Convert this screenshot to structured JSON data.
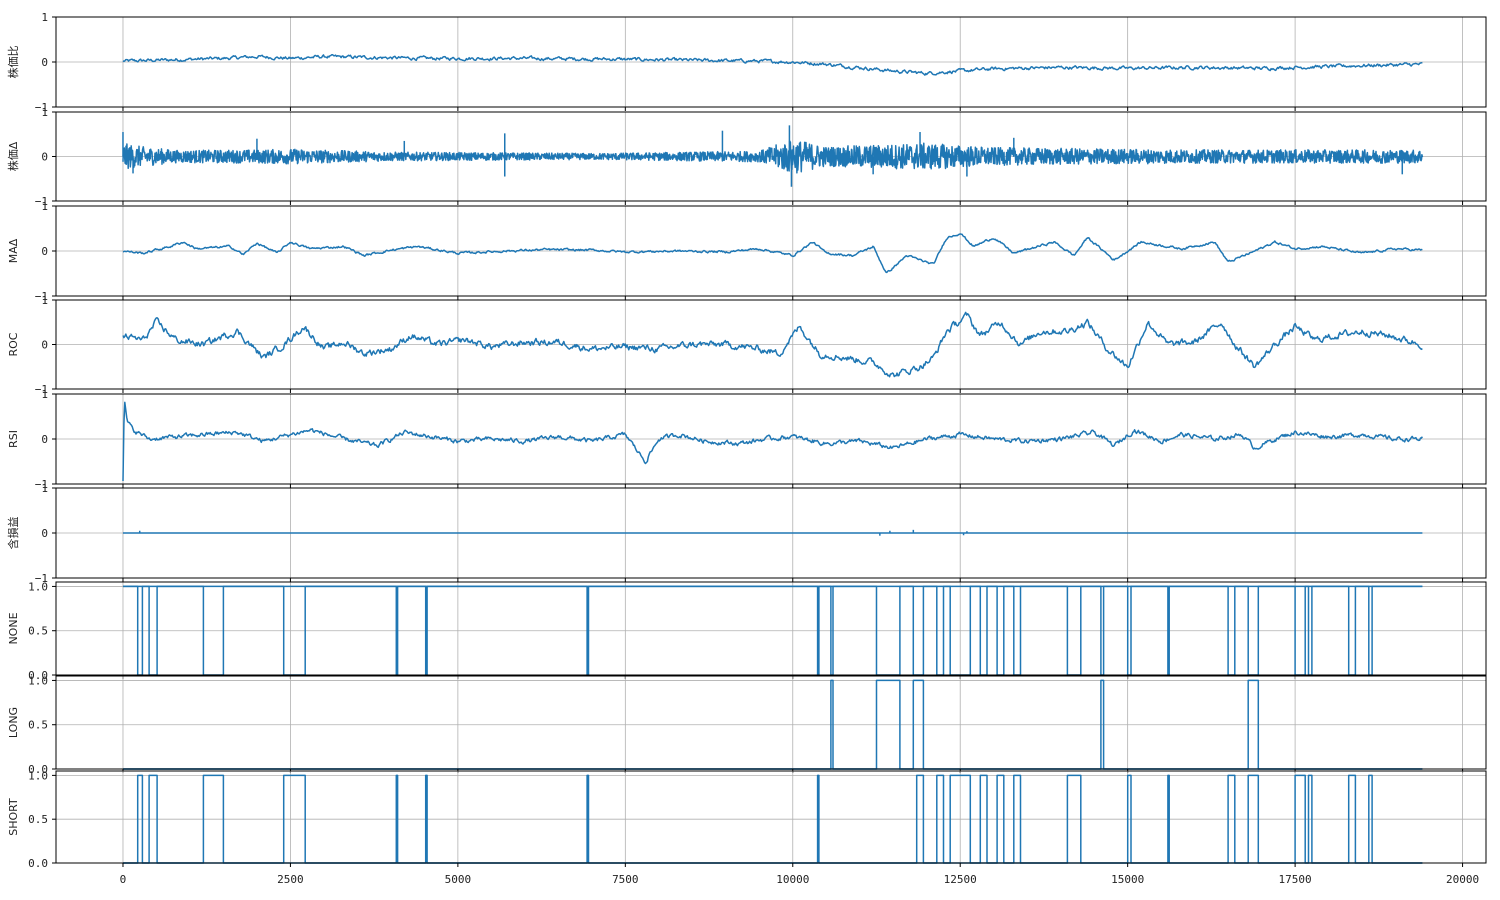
{
  "chart_data": {
    "type": "line",
    "x_range": [
      0,
      19400
    ],
    "xlim": [
      -1000,
      20350
    ],
    "x_ticks": [
      0,
      2500,
      5000,
      7500,
      10000,
      12500,
      15000,
      17500,
      20000
    ],
    "x_tick_labels": [
      "0",
      "2500",
      "5000",
      "7500",
      "10000",
      "12500",
      "15000",
      "17500",
      "20000"
    ],
    "grid": true,
    "line_color": "#1f77b4",
    "panels": [
      {
        "name": "株価比",
        "ylabel": "株価比",
        "ylim": [
          -1,
          1
        ],
        "y_ticks": [
          -1,
          0,
          1
        ],
        "y_tick_labels": [
          "−1",
          "0",
          "1"
        ],
        "style": "smooth",
        "amplitude": 0.03,
        "anchors": [
          [
            0,
            0.02
          ],
          [
            500,
            0.04
          ],
          [
            1500,
            0.08
          ],
          [
            2000,
            0.12
          ],
          [
            2500,
            0.08
          ],
          [
            3000,
            0.12
          ],
          [
            4500,
            0.08
          ],
          [
            6000,
            0.08
          ],
          [
            7500,
            0.06
          ],
          [
            8500,
            0.04
          ],
          [
            9500,
            0.02
          ],
          [
            10000,
            0.0
          ],
          [
            10500,
            -0.05
          ],
          [
            11500,
            -0.2
          ],
          [
            12000,
            -0.25
          ],
          [
            12500,
            -0.2
          ],
          [
            13000,
            -0.15
          ],
          [
            14000,
            -0.12
          ],
          [
            15000,
            -0.14
          ],
          [
            16000,
            -0.12
          ],
          [
            17000,
            -0.14
          ],
          [
            17500,
            -0.12
          ],
          [
            18500,
            -0.08
          ],
          [
            19400,
            -0.05
          ]
        ]
      },
      {
        "name": "株価Δ",
        "ylabel": "株価Δ",
        "ylim": [
          -1,
          1
        ],
        "y_ticks": [
          -1,
          0,
          1
        ],
        "y_tick_labels": [
          "−1",
          "0",
          "1"
        ],
        "style": "noise",
        "anchors": [
          [
            0,
            0.3
          ],
          [
            300,
            0.22
          ],
          [
            800,
            0.14
          ],
          [
            2000,
            0.15
          ],
          [
            2500,
            0.17
          ],
          [
            4000,
            0.1
          ],
          [
            7000,
            0.07
          ],
          [
            8500,
            0.1
          ],
          [
            9500,
            0.12
          ],
          [
            10000,
            0.4
          ],
          [
            10500,
            0.22
          ],
          [
            11000,
            0.25
          ],
          [
            12000,
            0.3
          ],
          [
            13000,
            0.2
          ],
          [
            16000,
            0.15
          ],
          [
            19400,
            0.15
          ]
        ],
        "spikes": [
          [
            0,
            0.55
          ],
          [
            150,
            -0.38
          ],
          [
            2000,
            0.4
          ],
          [
            4200,
            0.35
          ],
          [
            5700,
            0.52
          ],
          [
            5700,
            -0.45
          ],
          [
            8950,
            0.58
          ],
          [
            9950,
            0.7
          ],
          [
            9980,
            -0.68
          ],
          [
            11200,
            -0.4
          ],
          [
            11900,
            0.55
          ],
          [
            12600,
            -0.45
          ],
          [
            13300,
            0.42
          ],
          [
            19100,
            -0.4
          ]
        ]
      },
      {
        "name": "MAΔ",
        "ylabel": "MAΔ",
        "ylim": [
          -1,
          1
        ],
        "y_ticks": [
          -1,
          0,
          1
        ],
        "y_tick_labels": [
          "−1",
          "0",
          "1"
        ],
        "style": "smooth",
        "amplitude": 0.02,
        "anchors": [
          [
            0,
            0.0
          ],
          [
            300,
            -0.05
          ],
          [
            700,
            0.1
          ],
          [
            900,
            0.2
          ],
          [
            1100,
            0.05
          ],
          [
            1600,
            0.1
          ],
          [
            1800,
            -0.08
          ],
          [
            2000,
            0.18
          ],
          [
            2300,
            -0.05
          ],
          [
            2500,
            0.2
          ],
          [
            2800,
            0.05
          ],
          [
            3300,
            0.1
          ],
          [
            3600,
            -0.1
          ],
          [
            4000,
            0.02
          ],
          [
            4400,
            0.1
          ],
          [
            5000,
            -0.05
          ],
          [
            5700,
            0.0
          ],
          [
            6300,
            0.03
          ],
          [
            7000,
            0.02
          ],
          [
            7500,
            -0.02
          ],
          [
            8300,
            0.0
          ],
          [
            9000,
            -0.02
          ],
          [
            9500,
            0.05
          ],
          [
            10000,
            -0.1
          ],
          [
            10300,
            0.2
          ],
          [
            10500,
            -0.05
          ],
          [
            10900,
            -0.1
          ],
          [
            11200,
            0.1
          ],
          [
            11400,
            -0.5
          ],
          [
            11700,
            -0.1
          ],
          [
            12100,
            -0.3
          ],
          [
            12300,
            0.3
          ],
          [
            12500,
            0.4
          ],
          [
            12700,
            0.1
          ],
          [
            13000,
            0.3
          ],
          [
            13300,
            -0.05
          ],
          [
            13900,
            0.2
          ],
          [
            14200,
            -0.1
          ],
          [
            14400,
            0.3
          ],
          [
            14800,
            -0.2
          ],
          [
            15200,
            0.2
          ],
          [
            15800,
            0.05
          ],
          [
            16300,
            0.2
          ],
          [
            16500,
            -0.25
          ],
          [
            16900,
            0.0
          ],
          [
            17200,
            0.2
          ],
          [
            17500,
            0.05
          ],
          [
            17900,
            0.1
          ],
          [
            18500,
            -0.05
          ],
          [
            19000,
            0.05
          ],
          [
            19400,
            0.02
          ]
        ]
      },
      {
        "name": "ROC",
        "ylabel": "ROC",
        "ylim": [
          -1,
          1
        ],
        "y_ticks": [
          -1,
          0,
          1
        ],
        "y_tick_labels": [
          "−1",
          "0",
          "1"
        ],
        "style": "smooth",
        "amplitude": 0.06,
        "anchors": [
          [
            0,
            0.2
          ],
          [
            300,
            0.1
          ],
          [
            500,
            0.5
          ],
          [
            800,
            0.1
          ],
          [
            1200,
            0.0
          ],
          [
            1700,
            0.3
          ],
          [
            1900,
            0.0
          ],
          [
            2100,
            -0.3
          ],
          [
            2400,
            0.0
          ],
          [
            2700,
            0.4
          ],
          [
            3000,
            -0.1
          ],
          [
            3300,
            0.05
          ],
          [
            3600,
            -0.2
          ],
          [
            4000,
            -0.1
          ],
          [
            4300,
            0.2
          ],
          [
            4700,
            0.0
          ],
          [
            5100,
            0.1
          ],
          [
            5500,
            -0.05
          ],
          [
            6000,
            0.05
          ],
          [
            6500,
            0.05
          ],
          [
            7000,
            -0.1
          ],
          [
            7500,
            -0.05
          ],
          [
            8000,
            -0.1
          ],
          [
            8500,
            0.0
          ],
          [
            9000,
            0.0
          ],
          [
            9500,
            -0.1
          ],
          [
            9800,
            -0.2
          ],
          [
            10100,
            0.4
          ],
          [
            10400,
            -0.2
          ],
          [
            10800,
            -0.3
          ],
          [
            11200,
            -0.4
          ],
          [
            11500,
            -0.7
          ],
          [
            11900,
            -0.5
          ],
          [
            12100,
            -0.3
          ],
          [
            12300,
            0.3
          ],
          [
            12600,
            0.65
          ],
          [
            12800,
            0.2
          ],
          [
            13100,
            0.5
          ],
          [
            13400,
            0.0
          ],
          [
            13700,
            0.3
          ],
          [
            14100,
            0.3
          ],
          [
            14400,
            0.5
          ],
          [
            14700,
            -0.1
          ],
          [
            15000,
            -0.5
          ],
          [
            15300,
            0.5
          ],
          [
            15600,
            0.0
          ],
          [
            16000,
            0.05
          ],
          [
            16400,
            0.5
          ],
          [
            16600,
            0.0
          ],
          [
            16900,
            -0.5
          ],
          [
            17200,
            0.0
          ],
          [
            17500,
            0.4
          ],
          [
            17800,
            0.1
          ],
          [
            18100,
            0.2
          ],
          [
            18500,
            0.3
          ],
          [
            18900,
            0.2
          ],
          [
            19400,
            0.0
          ]
        ]
      },
      {
        "name": "RSI",
        "ylabel": "RSI",
        "ylim": [
          -1,
          1
        ],
        "y_ticks": [
          -1,
          0,
          1
        ],
        "y_tick_labels": [
          "−1",
          "0",
          "1"
        ],
        "style": "smooth",
        "amplitude": 0.04,
        "anchors": [
          [
            0,
            -0.95
          ],
          [
            20,
            0.85
          ],
          [
            60,
            0.4
          ],
          [
            150,
            0.2
          ],
          [
            400,
            0.0
          ],
          [
            800,
            0.05
          ],
          [
            1200,
            0.1
          ],
          [
            1700,
            0.15
          ],
          [
            2100,
            -0.05
          ],
          [
            2500,
            0.1
          ],
          [
            2800,
            0.2
          ],
          [
            3300,
            0.0
          ],
          [
            3800,
            -0.15
          ],
          [
            4200,
            0.15
          ],
          [
            4600,
            0.05
          ],
          [
            5000,
            -0.05
          ],
          [
            5500,
            0.0
          ],
          [
            6000,
            -0.05
          ],
          [
            6500,
            0.05
          ],
          [
            7000,
            -0.05
          ],
          [
            7500,
            0.1
          ],
          [
            7800,
            -0.5
          ],
          [
            8000,
            0.0
          ],
          [
            8300,
            0.1
          ],
          [
            8700,
            -0.05
          ],
          [
            9200,
            -0.1
          ],
          [
            9600,
            0.0
          ],
          [
            10000,
            0.05
          ],
          [
            10500,
            -0.1
          ],
          [
            11000,
            -0.05
          ],
          [
            11500,
            -0.2
          ],
          [
            12000,
            0.0
          ],
          [
            12500,
            0.1
          ],
          [
            13000,
            0.0
          ],
          [
            13500,
            -0.05
          ],
          [
            14000,
            0.0
          ],
          [
            14500,
            0.15
          ],
          [
            14800,
            -0.15
          ],
          [
            15100,
            0.2
          ],
          [
            15500,
            -0.05
          ],
          [
            15800,
            0.1
          ],
          [
            16300,
            0.0
          ],
          [
            16700,
            0.1
          ],
          [
            16900,
            -0.2
          ],
          [
            17200,
            0.0
          ],
          [
            17500,
            0.15
          ],
          [
            18000,
            0.05
          ],
          [
            18500,
            0.1
          ],
          [
            19000,
            0.0
          ],
          [
            19400,
            0.0
          ]
        ]
      },
      {
        "name": "含損益",
        "ylabel": "含損益",
        "ylim": [
          -1,
          1
        ],
        "y_ticks": [
          -1,
          0,
          1
        ],
        "y_tick_labels": [
          "−1",
          "0",
          "1"
        ],
        "style": "flat",
        "anchors": [
          [
            0,
            0.0
          ],
          [
            19400,
            0.0
          ]
        ],
        "spikes": [
          [
            250,
            0.05
          ],
          [
            11300,
            -0.06
          ],
          [
            11450,
            0.05
          ],
          [
            11800,
            0.07
          ],
          [
            12550,
            -0.05
          ],
          [
            12600,
            0.04
          ]
        ]
      },
      {
        "name": "NONE",
        "ylabel": "NONE",
        "ylim": [
          0,
          1.05
        ],
        "y_ticks": [
          0,
          0.5,
          1
        ],
        "y_tick_labels": [
          "0.0",
          "0.5",
          "1.0"
        ],
        "style": "binary",
        "base": 1,
        "toggles": [
          220,
          290,
          390,
          510,
          1200,
          1500,
          2400,
          2720,
          4080,
          4100,
          4520,
          4540,
          6930,
          6950,
          10370,
          10390,
          10570,
          10600,
          11250,
          11600,
          11800,
          11950,
          12150,
          12250,
          12350,
          12650,
          12800,
          12900,
          13050,
          13150,
          13300,
          13400,
          14100,
          14300,
          14600,
          14640,
          15000,
          15050,
          15600,
          15620,
          16500,
          16600,
          16800,
          16950,
          17500,
          17650,
          17700,
          17750,
          18300,
          18400,
          18600,
          18650
        ]
      },
      {
        "name": "LONG",
        "ylabel": "LONG",
        "ylim": [
          0,
          1.05
        ],
        "y_ticks": [
          0,
          0.5,
          1
        ],
        "y_tick_labels": [
          "0.0",
          "0.5",
          "1.0"
        ],
        "style": "binary",
        "base": 0,
        "toggles": [
          10570,
          10600,
          11250,
          11600,
          11800,
          11950,
          14600,
          14640,
          16800,
          16950
        ]
      },
      {
        "name": "SHORT",
        "ylabel": "SHORT",
        "ylim": [
          0,
          1.05
        ],
        "y_ticks": [
          0,
          0.5,
          1
        ],
        "y_tick_labels": [
          "0.0",
          "0.5",
          "1.0"
        ],
        "style": "binary",
        "base": 0,
        "toggles": [
          220,
          290,
          390,
          510,
          1200,
          1500,
          2400,
          2720,
          4080,
          4100,
          4520,
          4540,
          6930,
          6950,
          10370,
          10390,
          11850,
          11950,
          12150,
          12250,
          12350,
          12650,
          12800,
          12900,
          13050,
          13150,
          13300,
          13400,
          14100,
          14300,
          15000,
          15050,
          15600,
          15620,
          16500,
          16600,
          16800,
          16950,
          17500,
          17650,
          17700,
          17750,
          18300,
          18400,
          18600,
          18650
        ]
      }
    ]
  }
}
